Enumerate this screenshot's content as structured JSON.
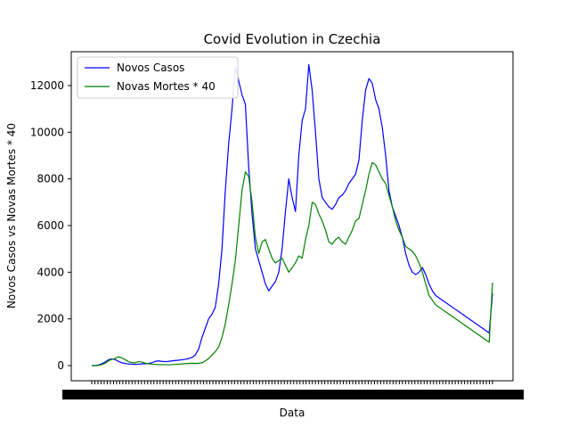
{
  "chart_data": {
    "type": "line",
    "title": "Covid Evolution in Czechia",
    "xlabel": "Data",
    "ylabel": "Novos Casos vs Novas Mortes * 40",
    "ylim": [
      -650,
      13450
    ],
    "yticks": [
      0,
      2000,
      4000,
      6000,
      8000,
      10000,
      12000
    ],
    "x": [
      0,
      5,
      10,
      15,
      20,
      25,
      30,
      35,
      40,
      45,
      50,
      55,
      60,
      65,
      70,
      75,
      80,
      85,
      90,
      95,
      100,
      105,
      110,
      115,
      120,
      125,
      130,
      135,
      140,
      145,
      150,
      155,
      160,
      165,
      170,
      175,
      180,
      185,
      190,
      195,
      200,
      205,
      210,
      215,
      220,
      225,
      230,
      235,
      240,
      245,
      250,
      255,
      260,
      265,
      270,
      275,
      280,
      285,
      290,
      295,
      300,
      305,
      310,
      315,
      320,
      325,
      330,
      335,
      340,
      345,
      350,
      355,
      360,
      365,
      370,
      375,
      380,
      385,
      390,
      395,
      400,
      405,
      410,
      415,
      420,
      425,
      430,
      435,
      440,
      445,
      450,
      455,
      460,
      465,
      470,
      475,
      480,
      485,
      490,
      495,
      500,
      505,
      510,
      515,
      520,
      525,
      530,
      535,
      540,
      545,
      550,
      555,
      560,
      565,
      570,
      575,
      580,
      585,
      590,
      595,
      600
    ],
    "grid": false,
    "legend_position": "upper-left",
    "series": [
      {
        "name": "Novos Casos",
        "color": "#0000ff",
        "values": [
          0,
          5,
          20,
          80,
          150,
          250,
          290,
          260,
          180,
          120,
          90,
          70,
          60,
          50,
          60,
          70,
          80,
          90,
          120,
          180,
          200,
          180,
          170,
          180,
          200,
          220,
          230,
          250,
          270,
          300,
          350,
          450,
          700,
          1200,
          1600,
          2000,
          2200,
          2500,
          3500,
          5000,
          7500,
          9500,
          11000,
          12800,
          12200,
          11600,
          11200,
          8500,
          6500,
          5000,
          4500,
          4000,
          3500,
          3200,
          3400,
          3600,
          4000,
          5000,
          6600,
          8000,
          7200,
          6600,
          9000,
          10500,
          11000,
          12900,
          11800,
          10000,
          8000,
          7200,
          7000,
          6800,
          6700,
          6900,
          7200,
          7300,
          7500,
          7800,
          8000,
          8200,
          8800,
          10500,
          11800,
          12300,
          12100,
          11400,
          11000,
          10200,
          9000,
          7500,
          6800,
          6400,
          6000,
          5500,
          4800,
          4300,
          4000,
          3900,
          4000,
          4200,
          3900,
          3500,
          3200,
          3000,
          2900,
          2800,
          2700,
          2600,
          2500,
          2400,
          2300,
          2200,
          2100,
          2000,
          1900,
          1800,
          1700,
          1600,
          1500,
          1400,
          3100
        ]
      },
      {
        "name": "Novas Mortes * 40",
        "color": "#008000",
        "values": [
          0,
          0,
          10,
          40,
          100,
          200,
          270,
          300,
          380,
          330,
          250,
          170,
          130,
          120,
          170,
          150,
          100,
          80,
          60,
          50,
          40,
          40,
          40,
          30,
          40,
          50,
          60,
          70,
          80,
          90,
          100,
          90,
          100,
          120,
          200,
          300,
          450,
          600,
          800,
          1200,
          1800,
          2600,
          3500,
          4500,
          6000,
          7500,
          8300,
          8100,
          7000,
          5500,
          4800,
          5300,
          5400,
          5000,
          4600,
          4400,
          4500,
          4600,
          4300,
          4000,
          4200,
          4400,
          4700,
          4600,
          5400,
          6000,
          7000,
          6900,
          6500,
          6200,
          5800,
          5300,
          5200,
          5400,
          5500,
          5300,
          5200,
          5500,
          5800,
          6200,
          6300,
          6900,
          7500,
          8200,
          8700,
          8600,
          8300,
          8000,
          7800,
          7300,
          6800,
          6200,
          5800,
          5500,
          5100,
          5000,
          4900,
          4700,
          4400,
          4000,
          3500,
          3000,
          2800,
          2600,
          2500,
          2400,
          2300,
          2200,
          2100,
          2000,
          1900,
          1800,
          1700,
          1600,
          1500,
          1400,
          1300,
          1200,
          1100,
          1000,
          3550
        ]
      }
    ]
  }
}
